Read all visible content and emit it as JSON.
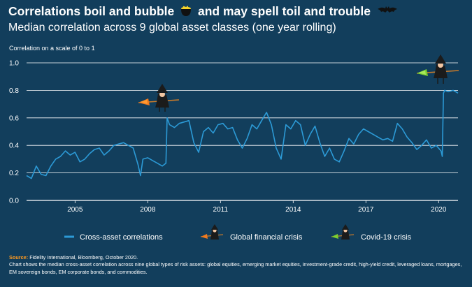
{
  "header": {
    "title": "Correlations boil and bubble",
    "title_suffix": "and may spell toil and trouble",
    "subtitle": "Median correlation across 9 global asset classes (one year rolling)"
  },
  "footer": {
    "source_label": "Source:",
    "source_text": "Fidelity International, Bloomberg, October 2020.",
    "note": "Chart shows the median cross-asset correlation across nine global types of risk assets: global equities, emerging market equities, investment-grade credit, high-yield credit, leveraged loans, mortgages, EM sovereign bonds, EM corporate bonds, and commodities."
  },
  "colors": {
    "background": "#123e5c",
    "line": "#2c9ad6",
    "grid": "#ffffff",
    "gfc_broom": "#f07a1e",
    "covid_broom": "#7ccf2e"
  },
  "icons": [
    "cauldron-icon",
    "bat-icon",
    "witch-gfc-icon",
    "witch-covid-icon"
  ],
  "chart_data": {
    "type": "line",
    "title": "Median correlation across 9 global asset classes (one year rolling)",
    "ylabel": "Correlation on a scale of 0 to 1",
    "xlabel": "",
    "ylim": [
      0,
      1
    ],
    "xlim": [
      2003.0,
      2020.8
    ],
    "yticks": [
      0.0,
      0.2,
      0.4,
      0.6,
      0.8,
      1.0
    ],
    "ytick_labels": [
      "0.0",
      "0.2",
      "0.4",
      "0.6",
      "0.8",
      "1.0"
    ],
    "xticks": [
      2005,
      2008,
      2011,
      2014,
      2017,
      2020
    ],
    "xtick_labels": [
      "2005",
      "2008",
      "2011",
      "2014",
      "2017",
      "2020"
    ],
    "grid": true,
    "legend_position": "bottom",
    "legend": [
      {
        "label": "Cross-asset correlations",
        "marker": "line"
      },
      {
        "label": "Global financial crisis",
        "marker": "witch-gfc-icon"
      },
      {
        "label": "Covid-19 crisis",
        "marker": "witch-covid-icon"
      }
    ],
    "annotations": [
      {
        "label": "Global financial crisis",
        "x": 2008.5,
        "y": 0.72
      },
      {
        "label": "Covid-19 crisis",
        "x": 2020.2,
        "y": 0.92
      }
    ],
    "series": [
      {
        "name": "Cross-asset correlations",
        "x": [
          2003.0,
          2003.2,
          2003.4,
          2003.6,
          2003.8,
          2004.0,
          2004.2,
          2004.4,
          2004.6,
          2004.8,
          2005.0,
          2005.2,
          2005.4,
          2005.6,
          2005.8,
          2006.0,
          2006.2,
          2006.4,
          2006.6,
          2006.8,
          2007.0,
          2007.2,
          2007.4,
          2007.6,
          2007.7,
          2007.8,
          2008.0,
          2008.2,
          2008.4,
          2008.6,
          2008.75,
          2008.8,
          2008.9,
          2009.1,
          2009.3,
          2009.5,
          2009.7,
          2009.9,
          2010.1,
          2010.3,
          2010.5,
          2010.7,
          2010.9,
          2011.1,
          2011.3,
          2011.5,
          2011.7,
          2011.9,
          2012.1,
          2012.3,
          2012.5,
          2012.7,
          2012.9,
          2013.1,
          2013.3,
          2013.5,
          2013.7,
          2013.9,
          2014.1,
          2014.3,
          2014.5,
          2014.7,
          2014.9,
          2015.1,
          2015.3,
          2015.5,
          2015.7,
          2015.9,
          2016.1,
          2016.3,
          2016.5,
          2016.7,
          2016.9,
          2017.1,
          2017.3,
          2017.5,
          2017.7,
          2017.9,
          2018.1,
          2018.3,
          2018.5,
          2018.7,
          2018.9,
          2019.1,
          2019.3,
          2019.5,
          2019.7,
          2019.9,
          2020.1,
          2020.15,
          2020.2,
          2020.25,
          2020.4,
          2020.6,
          2020.8
        ],
        "values": [
          0.18,
          0.16,
          0.25,
          0.19,
          0.18,
          0.25,
          0.3,
          0.32,
          0.36,
          0.33,
          0.35,
          0.28,
          0.3,
          0.34,
          0.37,
          0.38,
          0.33,
          0.36,
          0.4,
          0.41,
          0.42,
          0.4,
          0.38,
          0.26,
          0.18,
          0.3,
          0.31,
          0.29,
          0.27,
          0.25,
          0.27,
          0.6,
          0.55,
          0.53,
          0.56,
          0.57,
          0.58,
          0.42,
          0.35,
          0.5,
          0.53,
          0.49,
          0.55,
          0.56,
          0.52,
          0.53,
          0.44,
          0.38,
          0.45,
          0.55,
          0.52,
          0.58,
          0.64,
          0.55,
          0.38,
          0.3,
          0.55,
          0.52,
          0.58,
          0.55,
          0.4,
          0.48,
          0.54,
          0.42,
          0.32,
          0.38,
          0.3,
          0.28,
          0.36,
          0.45,
          0.41,
          0.48,
          0.52,
          0.5,
          0.48,
          0.46,
          0.44,
          0.45,
          0.43,
          0.56,
          0.52,
          0.46,
          0.42,
          0.37,
          0.4,
          0.44,
          0.38,
          0.4,
          0.36,
          0.32,
          0.78,
          0.8,
          0.79,
          0.8,
          0.78
        ]
      }
    ]
  }
}
